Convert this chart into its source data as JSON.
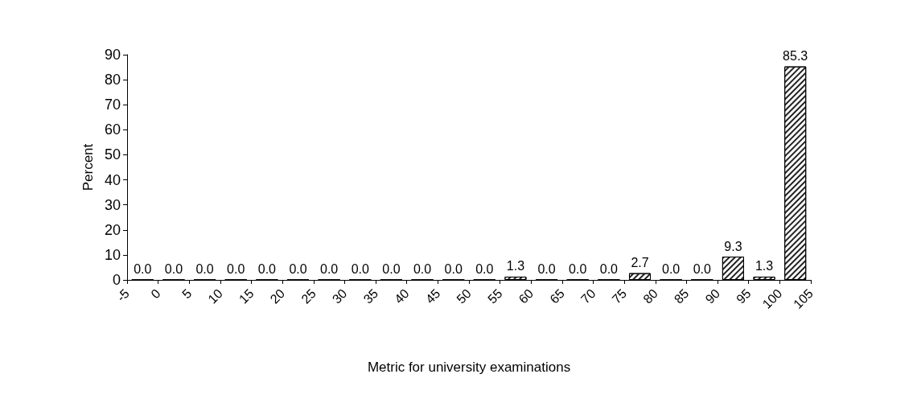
{
  "chart_data": {
    "type": "histogram",
    "xlabel": "Metric for university examinations",
    "ylabel": "Percent",
    "bins": [
      -5,
      0,
      5,
      10,
      15,
      20,
      25,
      30,
      35,
      40,
      45,
      50,
      55,
      60,
      65,
      70,
      75,
      80,
      85,
      90,
      95,
      100,
      105
    ],
    "values": [
      0,
      0,
      0,
      0,
      0,
      0,
      0,
      0,
      0,
      0,
      0,
      0,
      1.3,
      0,
      0,
      0,
      2.7,
      0,
      0,
      9.3,
      1.3,
      85.3
    ],
    "value_labels": [
      "0.0",
      "0.0",
      "0.0",
      "0.0",
      "0.0",
      "0.0",
      "0.0",
      "0.0",
      "0.0",
      "0.0",
      "0.0",
      "0.0",
      "1.3",
      "0.0",
      "0.0",
      "0.0",
      "2.7",
      "0.0",
      "0.0",
      "9.3",
      "1.3",
      "85.3"
    ],
    "color": "#ffffff",
    "xlim": [
      -5,
      105
    ],
    "xticks": [
      -5,
      0,
      5,
      10,
      15,
      20,
      25,
      30,
      35,
      40,
      45,
      50,
      55,
      60,
      65,
      70,
      75,
      80,
      85,
      90,
      95,
      100,
      105
    ],
    "ylim": [
      0,
      90
    ],
    "yticks": [
      0,
      10,
      20,
      30,
      40,
      50,
      60,
      70,
      80,
      90
    ],
    "grid": false
  }
}
